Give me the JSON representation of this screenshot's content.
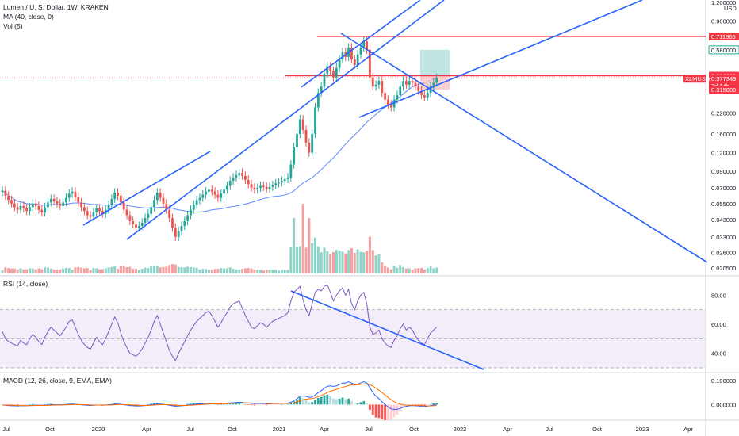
{
  "main_pane": {
    "title": "Lumen / U. S. Dollar, 1W, KRAKEN",
    "ma_label": "MA (40, close, 0)",
    "vol_label": "Vol (5)",
    "currency": "USD"
  },
  "rsi_pane": {
    "label": "RSI (14, close)"
  },
  "macd_pane": {
    "label": "MACD (12, 26, close, 9, EMA, EMA)"
  },
  "price_ticks": [
    "1.200000",
    "0.900000",
    "0.711965",
    "0.580000",
    "0.390000",
    "0.377349",
    "2d 14h",
    "0.372925",
    "0.315000",
    "0.220000",
    "0.160000",
    "0.120000",
    "0.090000",
    "0.070000",
    "0.055000",
    "0.043000",
    "0.033000",
    "0.026000",
    "0.020500"
  ],
  "rsi_ticks": [
    "80.00",
    "60.00",
    "40.00"
  ],
  "macd_ticks": [
    "0.100000",
    "0.000000"
  ],
  "time_labels": [
    "Jul",
    "Oct",
    "2020",
    "Apr",
    "Jul",
    "Oct",
    "2021",
    "Apr",
    "Jul",
    "Oct",
    "2022",
    "Apr",
    "Jul",
    "Oct",
    "2023",
    "Apr"
  ],
  "price_tags": [
    {
      "text": "0.711965",
      "bg": "#f23645",
      "fg": "#ffffff"
    },
    {
      "text": "0.580000",
      "bg": "#ffffff",
      "fg": "#131722",
      "border": "#22ab94"
    },
    {
      "text": "0.390000",
      "bg": "#f23645",
      "fg": "#ffffff"
    },
    {
      "text": "0.377349",
      "bg": "#f23645",
      "fg": "#ffffff"
    },
    {
      "text": "2d 14h",
      "bg": "#f23645",
      "fg": "#ffffff"
    },
    {
      "text": "0.372925",
      "bg": "#434651",
      "fg": "#ffffff"
    },
    {
      "text": "0.315000",
      "bg": "#f23645",
      "fg": "#ffffff"
    }
  ],
  "symbol_tag": {
    "text": "XLMUSD",
    "bg": "#f23645",
    "fg": "#ffffff"
  },
  "colors": {
    "up": "#26a69a",
    "down": "#ef5350",
    "trend": "#2962ff",
    "hline": "#f23645",
    "ma": "#2962ff",
    "rsi": "#7e57c2",
    "macd": "#2962ff",
    "signal": "#ff6d00",
    "vol_up": "#8fd3c8",
    "vol_down": "#f5a0a0"
  },
  "chart_data": {
    "type": "candlestick",
    "interval": "1W",
    "y_scale": "log",
    "ylim": [
      0.0205,
      1.2
    ],
    "close_approx": [
      0.067,
      0.062,
      0.058,
      0.055,
      0.052,
      0.05,
      0.053,
      0.051,
      0.049,
      0.052,
      0.055,
      0.053,
      0.05,
      0.048,
      0.052,
      0.056,
      0.059,
      0.057,
      0.055,
      0.053,
      0.056,
      0.06,
      0.064,
      0.066,
      0.061,
      0.056,
      0.052,
      0.049,
      0.046,
      0.045,
      0.048,
      0.051,
      0.049,
      0.047,
      0.05,
      0.054,
      0.059,
      0.065,
      0.062,
      0.056,
      0.05,
      0.046,
      0.042,
      0.04,
      0.038,
      0.039,
      0.041,
      0.044,
      0.047,
      0.052,
      0.058,
      0.065,
      0.06,
      0.055,
      0.05,
      0.044,
      0.038,
      0.033,
      0.036,
      0.039,
      0.042,
      0.046,
      0.05,
      0.054,
      0.058,
      0.06,
      0.063,
      0.066,
      0.068,
      0.066,
      0.063,
      0.06,
      0.064,
      0.068,
      0.072,
      0.078,
      0.082,
      0.085,
      0.088,
      0.084,
      0.079,
      0.074,
      0.07,
      0.068,
      0.07,
      0.072,
      0.071,
      0.069,
      0.071,
      0.073,
      0.075,
      0.076,
      0.078,
      0.08,
      0.082,
      0.1,
      0.13,
      0.16,
      0.2,
      0.17,
      0.14,
      0.12,
      0.16,
      0.24,
      0.3,
      0.33,
      0.4,
      0.45,
      0.42,
      0.38,
      0.44,
      0.5,
      0.56,
      0.52,
      0.6,
      0.5,
      0.46,
      0.54,
      0.6,
      0.66,
      0.58,
      0.38,
      0.33,
      0.34,
      0.36,
      0.3,
      0.27,
      0.25,
      0.24,
      0.27,
      0.29,
      0.33,
      0.36,
      0.34,
      0.36,
      0.35,
      0.33,
      0.31,
      0.29,
      0.28,
      0.3,
      0.33,
      0.35,
      0.377
    ],
    "ma_length": 40,
    "hlines": [
      0.711965,
      0.39
    ],
    "position": {
      "entry": 0.39,
      "target": 0.58,
      "stop": 0.315
    },
    "rsi": {
      "ylim": [
        30,
        90
      ],
      "band": [
        30,
        70
      ],
      "mid": 50,
      "values": [
        55,
        50,
        48,
        47,
        46,
        45,
        49,
        47,
        46,
        50,
        53,
        51,
        48,
        46,
        51,
        55,
        58,
        56,
        54,
        52,
        55,
        58,
        62,
        63,
        58,
        53,
        49,
        46,
        44,
        43,
        47,
        51,
        48,
        46,
        50,
        55,
        60,
        65,
        61,
        54,
        48,
        44,
        40,
        39,
        38,
        40,
        43,
        47,
        51,
        56,
        62,
        66,
        60,
        54,
        48,
        42,
        38,
        35,
        40,
        44,
        48,
        52,
        56,
        59,
        62,
        64,
        66,
        68,
        69,
        66,
        62,
        58,
        61,
        65,
        68,
        72,
        74,
        75,
        76,
        71,
        66,
        62,
        58,
        57,
        59,
        61,
        60,
        58,
        60,
        62,
        63,
        64,
        65,
        66,
        68,
        76,
        82,
        84,
        86,
        77,
        70,
        66,
        74,
        82,
        84,
        83,
        86,
        87,
        82,
        76,
        80,
        83,
        85,
        80,
        84,
        74,
        70,
        76,
        80,
        82,
        74,
        58,
        53,
        54,
        56,
        50,
        47,
        45,
        44,
        49,
        52,
        57,
        60,
        56,
        58,
        56,
        52,
        49,
        47,
        46,
        50,
        54,
        56,
        58
      ]
    },
    "macd": {
      "ylim": [
        -0.045,
        0.12
      ],
      "macd_values": [
        -0.002,
        -0.003,
        -0.004,
        -0.005,
        -0.005,
        -0.006,
        -0.005,
        -0.005,
        -0.005,
        -0.004,
        -0.003,
        -0.003,
        -0.003,
        -0.004,
        -0.003,
        -0.002,
        -0.001,
        -0.001,
        -0.001,
        -0.001,
        -0.001,
        0,
        0.001,
        0.002,
        0.001,
        0,
        -0.001,
        -0.002,
        -0.003,
        -0.004,
        -0.003,
        -0.002,
        -0.002,
        -0.003,
        -0.002,
        -0.001,
        0,
        0.002,
        0.002,
        0.001,
        -0.001,
        -0.002,
        -0.004,
        -0.005,
        -0.006,
        -0.006,
        -0.005,
        -0.004,
        -0.003,
        -0.001,
        0.001,
        0.003,
        0.002,
        0.001,
        -0.001,
        -0.003,
        -0.005,
        -0.007,
        -0.006,
        -0.005,
        -0.004,
        -0.002,
        -0.001,
        0.001,
        0.002,
        0.003,
        0.004,
        0.005,
        0.006,
        0.005,
        0.004,
        0.003,
        0.004,
        0.005,
        0.006,
        0.007,
        0.008,
        0.009,
        0.01,
        0.009,
        0.007,
        0.006,
        0.005,
        0.004,
        0.004,
        0.004,
        0.004,
        0.003,
        0.003,
        0.004,
        0.004,
        0.004,
        0.005,
        0.005,
        0.006,
        0.01,
        0.016,
        0.024,
        0.034,
        0.036,
        0.034,
        0.03,
        0.032,
        0.04,
        0.05,
        0.058,
        0.068,
        0.076,
        0.078,
        0.076,
        0.078,
        0.083,
        0.09,
        0.09,
        0.095,
        0.09,
        0.083,
        0.085,
        0.09,
        0.095,
        0.09,
        0.07,
        0.05,
        0.035,
        0.025,
        0.012,
        0.0,
        -0.01,
        -0.018,
        -0.02,
        -0.02,
        -0.016,
        -0.01,
        -0.008,
        -0.005,
        -0.004,
        -0.005,
        -0.006,
        -0.008,
        -0.009,
        -0.007,
        -0.004,
        -0.002,
        0.001
      ]
    }
  }
}
